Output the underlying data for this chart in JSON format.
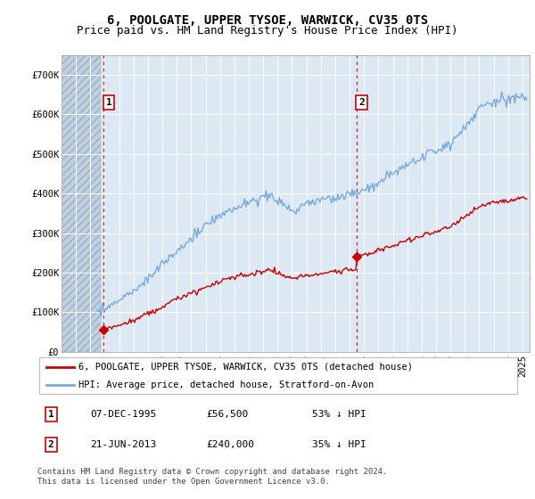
{
  "title": "6, POOLGATE, UPPER TYSOE, WARWICK, CV35 0TS",
  "subtitle": "Price paid vs. HM Land Registry's House Price Index (HPI)",
  "ylim": [
    0,
    750000
  ],
  "yticks": [
    0,
    100000,
    200000,
    300000,
    400000,
    500000,
    600000,
    700000
  ],
  "ytick_labels": [
    "£0",
    "£100K",
    "£200K",
    "£300K",
    "£400K",
    "£500K",
    "£600K",
    "£700K"
  ],
  "background_color": "#ffffff",
  "plot_bg_color": "#dce9f5",
  "hatched_region_color": "#c0d0e0",
  "grid_color": "#ffffff",
  "hpi_color": "#7aaadd",
  "price_color": "#cc0000",
  "marker1_x": 1995.92,
  "marker1_y": 56500,
  "marker1_label": "1",
  "marker2_x": 2013.47,
  "marker2_y": 240000,
  "marker2_label": "2",
  "legend_line1": "6, POOLGATE, UPPER TYSOE, WARWICK, CV35 0TS (detached house)",
  "legend_line2": "HPI: Average price, detached house, Stratford-on-Avon",
  "table_row1": [
    "1",
    "07-DEC-1995",
    "£56,500",
    "53% ↓ HPI"
  ],
  "table_row2": [
    "2",
    "21-JUN-2013",
    "£240,000",
    "35% ↓ HPI"
  ],
  "footer": "Contains HM Land Registry data © Crown copyright and database right 2024.\nThis data is licensed under the Open Government Licence v3.0.",
  "xmin": 1993,
  "xmax": 2025.5,
  "hatch_xmin": 1993,
  "hatch_xmax": 1995.75,
  "title_fontsize": 10,
  "subtitle_fontsize": 9,
  "tick_fontsize": 7.5,
  "legend_fontsize": 7.5,
  "table_fontsize": 8,
  "footer_fontsize": 6.5
}
